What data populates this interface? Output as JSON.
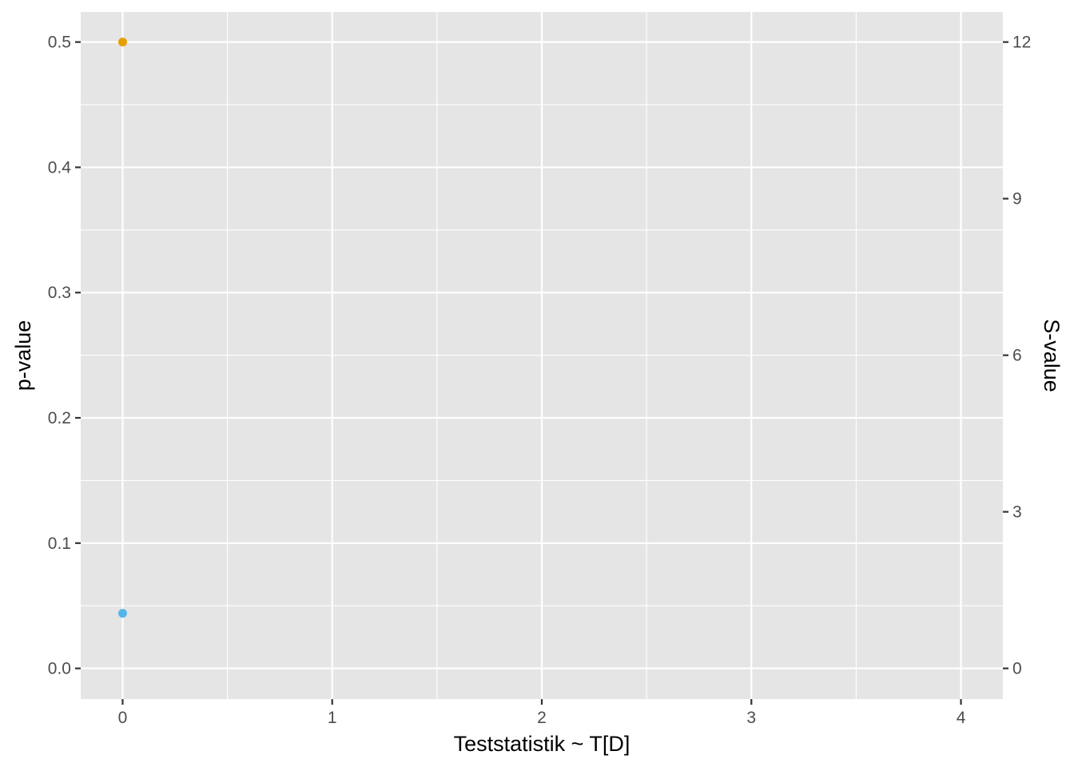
{
  "chart_data": {
    "type": "scatter",
    "xlabel": "Teststatistik ~ T[D]",
    "ylabel": "p-value",
    "y2label": "S-value",
    "xlim": [
      -0.2,
      4.2
    ],
    "ylim": [
      -0.0245,
      0.524
    ],
    "y2lim": [
      0,
      12
    ],
    "x_ticks": [
      "0",
      "1",
      "2",
      "3",
      "4"
    ],
    "y_ticks": [
      "0.0",
      "0.1",
      "0.2",
      "0.3",
      "0.4",
      "0.5"
    ],
    "y2_ticks": [
      "0",
      "3",
      "6",
      "9",
      "12"
    ],
    "grid": true,
    "legend": "none",
    "points": [
      {
        "x": 0,
        "y": 0.5,
        "color": "#e69f00"
      },
      {
        "x": 0,
        "y": 0.044,
        "color": "#56b4e9"
      }
    ]
  }
}
